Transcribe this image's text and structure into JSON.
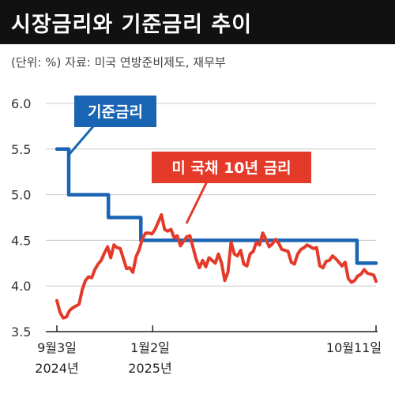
{
  "header": {
    "title": "시장금리와 기준금리 추이",
    "unit_note": "(단위: %)  자료: 미국 연방준비제도, 재무부"
  },
  "colors": {
    "base_rate": "#1a64b4",
    "treasury": "#e43a2a",
    "title_bg": "#111111",
    "grid": "#c8c8c8"
  },
  "chart_data": {
    "type": "line",
    "title": "시장금리와 기준금리 추이",
    "ylim": [
      3.5,
      6.0
    ],
    "y_ticks": [
      "3.5",
      "4.0",
      "4.5",
      "5.0",
      "5.5",
      "6.0"
    ],
    "y_tick_values": [
      3.5,
      4.0,
      4.5,
      5.0,
      5.5,
      6.0
    ],
    "x_ticks": [
      {
        "date": "2024-09-03",
        "label": "9월3일",
        "sublabel": "2024년"
      },
      {
        "date": "2025-01-02",
        "label": "1월2일",
        "sublabel": "2025년"
      },
      {
        "date": "2025-10-11",
        "label": "10월11일",
        "sublabel": ""
      }
    ],
    "x_range": [
      "2024-09-03",
      "2025-10-11"
    ],
    "grid": true,
    "series": [
      {
        "name": "기준금리",
        "color": "#1a64b4",
        "step": true,
        "points": [
          [
            "2024-09-03",
            5.5
          ],
          [
            "2024-09-18",
            5.0
          ],
          [
            "2024-11-07",
            4.75
          ],
          [
            "2024-12-18",
            4.5
          ],
          [
            "2025-09-17",
            4.25
          ],
          [
            "2025-10-11",
            4.25
          ]
        ]
      },
      {
        "name": "미 국채 10년 금리",
        "color": "#e43a2a",
        "step": false,
        "points": [
          [
            "2024-09-03",
            3.84
          ],
          [
            "2024-09-07",
            3.71
          ],
          [
            "2024-09-11",
            3.65
          ],
          [
            "2024-09-15",
            3.66
          ],
          [
            "2024-09-19",
            3.73
          ],
          [
            "2024-09-23",
            3.76
          ],
          [
            "2024-09-27",
            3.78
          ],
          [
            "2024-10-01",
            3.8
          ],
          [
            "2024-10-05",
            3.96
          ],
          [
            "2024-10-09",
            4.06
          ],
          [
            "2024-10-13",
            4.1
          ],
          [
            "2024-10-17",
            4.09
          ],
          [
            "2024-10-21",
            4.18
          ],
          [
            "2024-10-25",
            4.24
          ],
          [
            "2024-10-29",
            4.28
          ],
          [
            "2024-11-02",
            4.36
          ],
          [
            "2024-11-06",
            4.43
          ],
          [
            "2024-11-10",
            4.31
          ],
          [
            "2024-11-14",
            4.45
          ],
          [
            "2024-11-18",
            4.42
          ],
          [
            "2024-11-22",
            4.41
          ],
          [
            "2024-11-26",
            4.3
          ],
          [
            "2024-11-30",
            4.19
          ],
          [
            "2024-12-04",
            4.2
          ],
          [
            "2024-12-08",
            4.15
          ],
          [
            "2024-12-12",
            4.32
          ],
          [
            "2024-12-16",
            4.4
          ],
          [
            "2024-12-20",
            4.52
          ],
          [
            "2024-12-24",
            4.58
          ],
          [
            "2024-12-28",
            4.58
          ],
          [
            "2025-01-01",
            4.57
          ],
          [
            "2025-01-05",
            4.62
          ],
          [
            "2025-01-09",
            4.7
          ],
          [
            "2025-01-13",
            4.78
          ],
          [
            "2025-01-17",
            4.62
          ],
          [
            "2025-01-21",
            4.6
          ],
          [
            "2025-01-25",
            4.62
          ],
          [
            "2025-01-29",
            4.53
          ],
          [
            "2025-02-02",
            4.55
          ],
          [
            "2025-02-06",
            4.44
          ],
          [
            "2025-02-10",
            4.49
          ],
          [
            "2025-02-14",
            4.54
          ],
          [
            "2025-02-18",
            4.55
          ],
          [
            "2025-02-22",
            4.42
          ],
          [
            "2025-02-26",
            4.29
          ],
          [
            "2025-03-02",
            4.2
          ],
          [
            "2025-03-06",
            4.28
          ],
          [
            "2025-03-10",
            4.21
          ],
          [
            "2025-03-14",
            4.31
          ],
          [
            "2025-03-18",
            4.28
          ],
          [
            "2025-03-22",
            4.25
          ],
          [
            "2025-03-26",
            4.35
          ],
          [
            "2025-03-30",
            4.25
          ],
          [
            "2025-04-03",
            4.06
          ],
          [
            "2025-04-07",
            4.15
          ],
          [
            "2025-04-11",
            4.48
          ],
          [
            "2025-04-15",
            4.35
          ],
          [
            "2025-04-19",
            4.33
          ],
          [
            "2025-04-23",
            4.39
          ],
          [
            "2025-04-27",
            4.24
          ],
          [
            "2025-05-01",
            4.22
          ],
          [
            "2025-05-05",
            4.35
          ],
          [
            "2025-05-09",
            4.38
          ],
          [
            "2025-05-13",
            4.48
          ],
          [
            "2025-05-17",
            4.45
          ],
          [
            "2025-05-21",
            4.58
          ],
          [
            "2025-05-25",
            4.51
          ],
          [
            "2025-05-29",
            4.43
          ],
          [
            "2025-06-02",
            4.46
          ],
          [
            "2025-06-06",
            4.51
          ],
          [
            "2025-06-10",
            4.47
          ],
          [
            "2025-06-14",
            4.4
          ],
          [
            "2025-06-18",
            4.39
          ],
          [
            "2025-06-22",
            4.38
          ],
          [
            "2025-06-26",
            4.26
          ],
          [
            "2025-06-30",
            4.24
          ],
          [
            "2025-07-04",
            4.35
          ],
          [
            "2025-07-08",
            4.4
          ],
          [
            "2025-07-12",
            4.42
          ],
          [
            "2025-07-16",
            4.45
          ],
          [
            "2025-07-20",
            4.43
          ],
          [
            "2025-07-24",
            4.41
          ],
          [
            "2025-07-28",
            4.42
          ],
          [
            "2025-08-01",
            4.22
          ],
          [
            "2025-08-05",
            4.2
          ],
          [
            "2025-08-09",
            4.27
          ],
          [
            "2025-08-13",
            4.28
          ],
          [
            "2025-08-17",
            4.33
          ],
          [
            "2025-08-21",
            4.3
          ],
          [
            "2025-08-25",
            4.26
          ],
          [
            "2025-08-29",
            4.22
          ],
          [
            "2025-09-02",
            4.26
          ],
          [
            "2025-09-06",
            4.08
          ],
          [
            "2025-09-10",
            4.04
          ],
          [
            "2025-09-14",
            4.06
          ],
          [
            "2025-09-18",
            4.11
          ],
          [
            "2025-09-22",
            4.13
          ],
          [
            "2025-09-26",
            4.18
          ],
          [
            "2025-09-30",
            4.14
          ],
          [
            "2025-10-04",
            4.13
          ],
          [
            "2025-10-08",
            4.12
          ],
          [
            "2025-10-11",
            4.05
          ]
        ]
      }
    ]
  }
}
